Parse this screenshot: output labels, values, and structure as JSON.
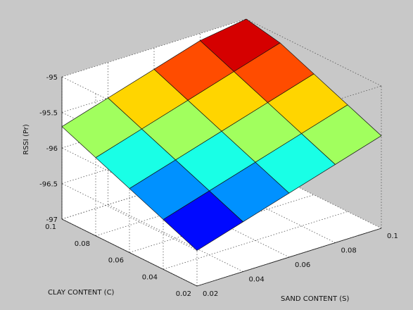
{
  "chart_data": {
    "type": "surface",
    "title": "",
    "xlabel": "SAND CONTENT (S)",
    "ylabel": "CLAY CONTENT (C)",
    "zlabel": "RSSI (Pr)",
    "xlim": [
      0.02,
      0.1
    ],
    "ylim": [
      0.02,
      0.1
    ],
    "zlim": [
      -97,
      -95
    ],
    "x_ticks": [
      "0.02",
      "0.04",
      "0.06",
      "0.08",
      "0.1"
    ],
    "y_ticks": [
      "0.02",
      "0.04",
      "0.06",
      "0.08",
      "0.1"
    ],
    "z_ticks": [
      "-95",
      "-95.5",
      "-96",
      "-96.5",
      "-97"
    ],
    "grid": true,
    "colormap": "jet",
    "x": [
      0.02,
      0.04,
      0.06,
      0.08,
      0.1
    ],
    "y": [
      0.02,
      0.04,
      0.06,
      0.08,
      0.1
    ],
    "z": [
      [
        -96.5,
        -96.3,
        -96.1,
        -95.9,
        -95.7
      ],
      [
        -96.3,
        -96.1,
        -95.9,
        -95.7,
        -95.5
      ],
      [
        -96.1,
        -95.9,
        -95.7,
        -95.5,
        -95.3
      ],
      [
        -95.9,
        -95.7,
        -95.5,
        -95.3,
        -95.1
      ],
      [
        -95.7,
        -95.5,
        -95.3,
        -95.1,
        -95.0
      ]
    ]
  }
}
